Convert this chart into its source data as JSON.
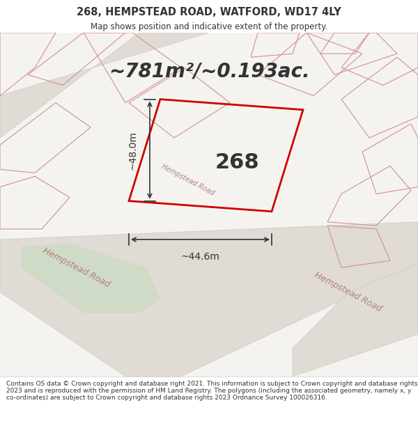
{
  "title_line1": "268, HEMPSTEAD ROAD, WATFORD, WD17 4LY",
  "title_line2": "Map shows position and indicative extent of the property.",
  "area_text": "~781m²/~0.193ac.",
  "label_268": "268",
  "dim_horizontal": "~44.6m",
  "dim_vertical": "~48.0m",
  "road_label_main_left": "Hempstead Road",
  "road_label_main_right": "Hempstead Road",
  "road_label_small": "Hempstead Road",
  "footer_text": "Contains OS data © Crown copyright and database right 2021. This information is subject to Crown copyright and database rights 2023 and is reproduced with the permission of HM Land Registry. The polygons (including the associated geometry, namely x, y co-ordinates) are subject to Crown copyright and database rights 2023 Ordnance Survey 100026316.",
  "bg_color": "#f0eeea",
  "map_bg": "#f5f3ef",
  "road_color": "#e8e0d8",
  "road_outline_color": "#d0c8c0",
  "plot_line_color": "#cc0000",
  "other_plot_color": "#e8a0a0",
  "green_area_color": "#c8dcc0",
  "dim_line_color": "#333333",
  "text_color": "#333333",
  "footer_bg": "#ffffff",
  "road_label_color": "#b08080",
  "grid_line_color": "#d8d0c8"
}
